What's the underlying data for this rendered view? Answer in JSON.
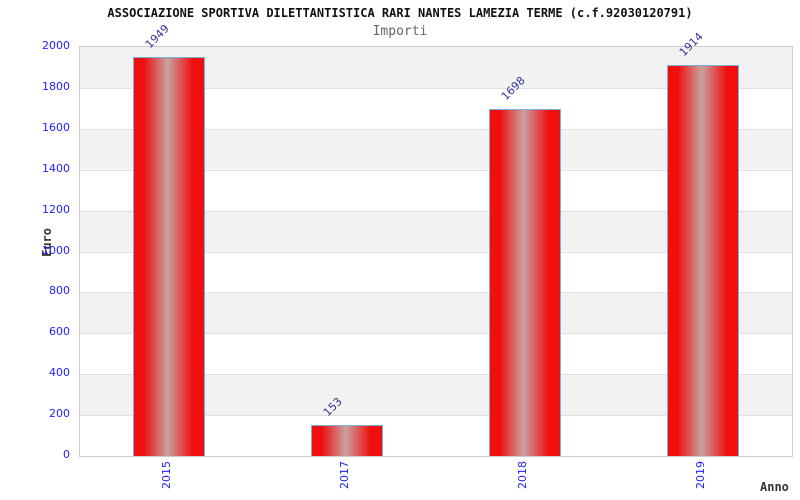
{
  "header": {
    "title": "ASSOCIAZIONE SPORTIVA DILETTANTISTICA RARI NANTES LAMEZIA TERME (c.f.92030120791)",
    "subtitle": "Importi"
  },
  "chart_data": {
    "type": "bar",
    "categories": [
      "2015",
      "2017",
      "2018",
      "2019"
    ],
    "values": [
      1949,
      153,
      1698,
      1914
    ],
    "title": "ASSOCIAZIONE SPORTIVA DILETTANTISTICA RARI NANTES LAMEZIA TERME (c.f.92030120791)",
    "subtitle": "Importi",
    "xlabel": "Anno",
    "ylabel": "Euro",
    "ylim": [
      0,
      2000
    ],
    "ytick_step": 200,
    "ytick_labels": [
      "0",
      "200",
      "400",
      "600",
      "800",
      "1000",
      "1200",
      "1400",
      "1600",
      "1800",
      "2000"
    ],
    "grid": true,
    "legend": false,
    "band_fill": "alternating horizontal bands",
    "colors": {
      "bar_fill_edge": "#ef0f0f",
      "bar_fill_center": "#c9a1a1",
      "bar_border": "#74b2e2",
      "tick_label": "#2121ff",
      "value_label": "#333399",
      "band_gray": "#f2f2f2",
      "gridline": "#e0e0e0",
      "plot_border": "#cccccc",
      "title_color": "#111111",
      "subtitle_color": "#666666",
      "axis_title_color": "#333333"
    }
  }
}
